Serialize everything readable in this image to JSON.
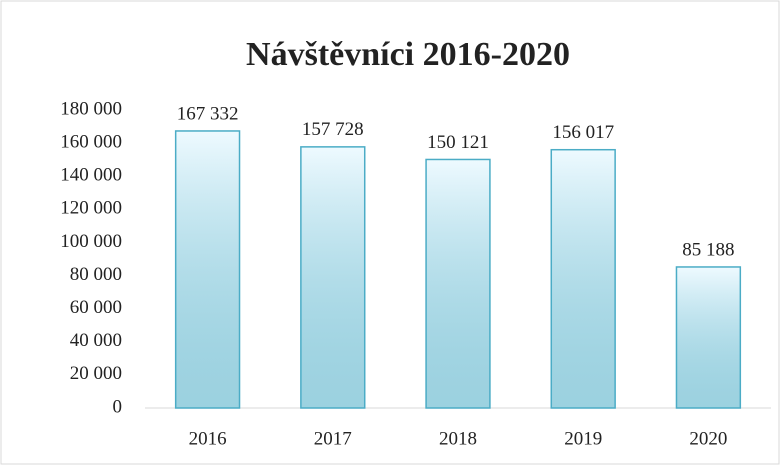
{
  "chart_data": {
    "type": "bar",
    "title": "Návštěvníci 2016-2020",
    "categories": [
      "2016",
      "2017",
      "2018",
      "2019",
      "2020"
    ],
    "values": [
      167332,
      157728,
      150121,
      156017,
      85188
    ],
    "value_labels": [
      "167 332",
      "157 728",
      "150 121",
      "156 017",
      "85 188"
    ],
    "color": "#4bacc6",
    "ylim": [
      0,
      180000
    ],
    "yticks": [
      0,
      {
        "value": 20000,
        "label": "20 000"
      },
      {
        "value": 40000,
        "label": "40 000"
      },
      {
        "value": 60000,
        "label": "60 000"
      },
      {
        "value": 80000,
        "label": "80 000"
      },
      {
        "value": 100000,
        "label": "100 000"
      },
      {
        "value": 120000,
        "label": "120 000"
      },
      {
        "value": 140000,
        "label": "140 000"
      },
      {
        "value": 160000,
        "label": "160 000"
      },
      {
        "value": 180000,
        "label": "180 000"
      }
    ],
    "grid": false
  }
}
